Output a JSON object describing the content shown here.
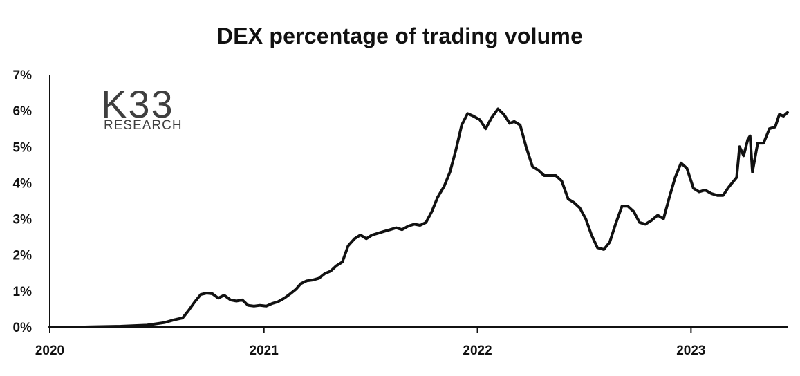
{
  "chart_data": {
    "type": "line",
    "title": "DEX percentage of trading volume",
    "xlabel": "",
    "ylabel": "",
    "ylim": [
      0,
      7
    ],
    "y_ticks": [
      "0%",
      "1%",
      "2%",
      "3%",
      "4%",
      "5%",
      "6%",
      "7%"
    ],
    "x_ticks": [
      "2020",
      "2021",
      "2022",
      "2023"
    ],
    "xlim": [
      "2020-01-01",
      "2023-06-15"
    ],
    "grid": false,
    "legend": "none",
    "line_color": "#111111",
    "series": [
      {
        "x": [
          "2020-01-01",
          "2020-03-01",
          "2020-05-01",
          "2020-06-15",
          "2020-07-15",
          "2020-08-01",
          "2020-08-15",
          "2020-08-25",
          "2020-09-05",
          "2020-09-15",
          "2020-09-25",
          "2020-10-05",
          "2020-10-15",
          "2020-10-25",
          "2020-11-05",
          "2020-11-15",
          "2020-11-25",
          "2020-12-05",
          "2020-12-15",
          "2020-12-25",
          "2021-01-05",
          "2021-01-15",
          "2021-01-25",
          "2021-02-05",
          "2021-02-15",
          "2021-02-25",
          "2021-03-05",
          "2021-03-15",
          "2021-03-25",
          "2021-04-05",
          "2021-04-15",
          "2021-04-25",
          "2021-05-05",
          "2021-05-15",
          "2021-05-25",
          "2021-06-05",
          "2021-06-15",
          "2021-06-25",
          "2021-07-05",
          "2021-07-15",
          "2021-07-25",
          "2021-08-05",
          "2021-08-15",
          "2021-08-25",
          "2021-09-05",
          "2021-09-15",
          "2021-09-25",
          "2021-10-05",
          "2021-10-15",
          "2021-10-25",
          "2021-11-05",
          "2021-11-15",
          "2021-11-25",
          "2021-12-05",
          "2021-12-15",
          "2021-12-25",
          "2022-01-05",
          "2022-01-15",
          "2022-01-25",
          "2022-02-05",
          "2022-02-15",
          "2022-02-25",
          "2022-03-05",
          "2022-03-15",
          "2022-03-25",
          "2022-04-05",
          "2022-04-15",
          "2022-04-25",
          "2022-05-05",
          "2022-05-15",
          "2022-05-25",
          "2022-06-05",
          "2022-06-15",
          "2022-06-25",
          "2022-07-05",
          "2022-07-15",
          "2022-07-25",
          "2022-08-05",
          "2022-08-15",
          "2022-08-25",
          "2022-09-05",
          "2022-09-15",
          "2022-09-25",
          "2022-10-05",
          "2022-10-15",
          "2022-10-25",
          "2022-11-05",
          "2022-11-15",
          "2022-11-25",
          "2022-12-05",
          "2022-12-15",
          "2022-12-25",
          "2023-01-05",
          "2023-01-15",
          "2023-01-25",
          "2023-02-05",
          "2023-02-15",
          "2023-02-25",
          "2023-03-05",
          "2023-03-10",
          "2023-03-15",
          "2023-03-20",
          "2023-03-25",
          "2023-04-01",
          "2023-04-08",
          "2023-04-12",
          "2023-04-16",
          "2023-04-25",
          "2023-05-05",
          "2023-05-15",
          "2023-05-25",
          "2023-06-01",
          "2023-06-08",
          "2023-06-15"
        ],
        "y": [
          0.0,
          0.0,
          0.02,
          0.05,
          0.12,
          0.2,
          0.25,
          0.45,
          0.7,
          0.9,
          0.94,
          0.92,
          0.8,
          0.88,
          0.75,
          0.72,
          0.75,
          0.6,
          0.58,
          0.6,
          0.58,
          0.65,
          0.7,
          0.8,
          0.92,
          1.05,
          1.2,
          1.28,
          1.3,
          1.35,
          1.48,
          1.55,
          1.7,
          1.8,
          2.25,
          2.45,
          2.55,
          2.45,
          2.55,
          2.6,
          2.65,
          2.7,
          2.75,
          2.7,
          2.8,
          2.85,
          2.82,
          2.9,
          3.2,
          3.6,
          3.9,
          4.3,
          4.9,
          5.6,
          5.92,
          5.85,
          5.75,
          5.5,
          5.8,
          6.05,
          5.9,
          5.65,
          5.7,
          5.6,
          5.0,
          4.45,
          4.35,
          4.2,
          4.2,
          4.2,
          4.05,
          3.55,
          3.45,
          3.3,
          3.0,
          2.55,
          2.2,
          2.15,
          2.35,
          2.85,
          3.35,
          3.35,
          3.2,
          2.9,
          2.85,
          2.95,
          3.1,
          3.0,
          3.6,
          4.15,
          4.55,
          4.4,
          3.85,
          3.75,
          3.8,
          3.7,
          3.65,
          3.65,
          3.85,
          3.95,
          4.05,
          4.15,
          5.0,
          4.75,
          5.2,
          5.3,
          4.3,
          5.1,
          5.1,
          5.5,
          5.55,
          5.9,
          5.85,
          5.95
        ]
      }
    ]
  },
  "logo": {
    "mark": "K33",
    "subtitle": "RESEARCH"
  }
}
